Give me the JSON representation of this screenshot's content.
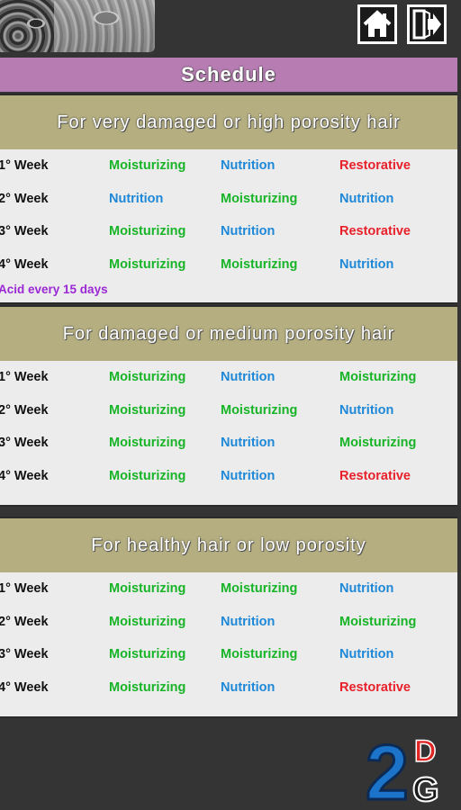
{
  "header": {
    "home_icon": "home-icon",
    "exit_icon": "exit-icon"
  },
  "title": "Schedule",
  "sections": [
    {
      "heading": "For very damaged or high porosity hair",
      "rows": [
        {
          "week": "1° Week",
          "c1": "Moisturizing",
          "c2": "Nutrition",
          "c3": "Restorative"
        },
        {
          "week": "2° Week",
          "c1": "Nutrition",
          "c2": "Moisturizing",
          "c3": "Nutrition"
        },
        {
          "week": "3° Week",
          "c1": "Moisturizing",
          "c2": "Nutrition",
          "c3": "Restorative"
        },
        {
          "week": "4° Week",
          "c1": "Moisturizing",
          "c2": "Moisturizing",
          "c3": "Nutrition"
        }
      ],
      "note": "Acid every 15 days"
    },
    {
      "heading": "For damaged or medium porosity hair",
      "rows": [
        {
          "week": "1° Week",
          "c1": "Moisturizing",
          "c2": "Nutrition",
          "c3": "Moisturizing"
        },
        {
          "week": "2° Week",
          "c1": "Moisturizing",
          "c2": "Moisturizing",
          "c3": "Nutrition"
        },
        {
          "week": "3° Week",
          "c1": "Moisturizing",
          "c2": "Nutrition",
          "c3": "Moisturizing"
        },
        {
          "week": "4° Week",
          "c1": "Moisturizing",
          "c2": "Nutrition",
          "c3": "Restorative"
        }
      ]
    },
    {
      "heading": "For healthy hair or low porosity",
      "rows": [
        {
          "week": "1° Week",
          "c1": "Moisturizing",
          "c2": "Moisturizing",
          "c3": "Nutrition"
        },
        {
          "week": "2° Week",
          "c1": "Moisturizing",
          "c2": "Nutrition",
          "c3": "Moisturizing"
        },
        {
          "week": "3° Week",
          "c1": "Moisturizing",
          "c2": "Moisturizing",
          "c3": "Nutrition"
        },
        {
          "week": "4° Week",
          "c1": "Moisturizing",
          "c2": "Nutrition",
          "c3": "Restorative"
        }
      ]
    }
  ],
  "logo": {
    "main": "2",
    "top": "D",
    "bottom": "G"
  },
  "colors": {
    "moisturizing": "#18b427",
    "nutrition": "#1e88d8",
    "restorative": "#e8202a",
    "note": "#9b28d4",
    "title_bar": "#b77db3",
    "section_head": "#b4ae80"
  }
}
